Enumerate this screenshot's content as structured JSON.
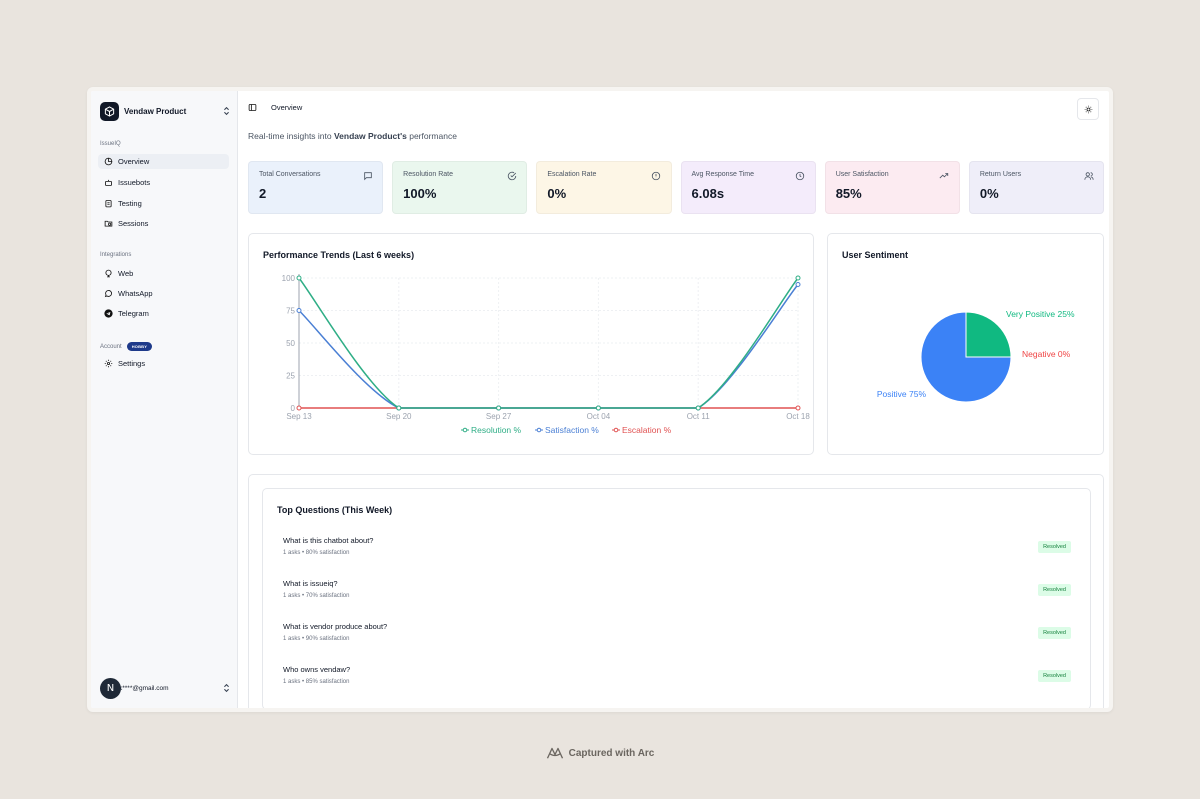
{
  "sidebar": {
    "brand": "Vendaw Product",
    "section_issueiq": "IssueIQ",
    "nav_overview": "Overview",
    "nav_issuebots": "Issuebots",
    "nav_testing": "Testing",
    "nav_sessions": "Sessions",
    "section_integrations": "Integrations",
    "nav_web": "Web",
    "nav_whatsapp": "WhatsApp",
    "nav_telegram": "Telegram",
    "section_account": "Account",
    "account_badge": "HOBBY",
    "nav_settings": "Settings",
    "avatar_letter": "N",
    "user_email": "k****@gmail.com"
  },
  "header": {
    "breadcrumb": "Overview",
    "subtitle_prefix": "Real-time insights into ",
    "subtitle_brand": "Vendaw Product's",
    "subtitle_suffix": " performance"
  },
  "stats": [
    {
      "label": "Total Conversations",
      "value": "2",
      "icon": "message-icon",
      "bg": "#eaf1fb"
    },
    {
      "label": "Resolution Rate",
      "value": "100%",
      "icon": "check-circle-icon",
      "bg": "#eaf7ee"
    },
    {
      "label": "Escalation Rate",
      "value": "0%",
      "icon": "alert-circle-icon",
      "bg": "#fdf6e6"
    },
    {
      "label": "Avg Response Time",
      "value": "6.08s",
      "icon": "clock-icon",
      "bg": "#f4ecfb"
    },
    {
      "label": "User Satisfaction",
      "value": "85%",
      "icon": "trending-up-icon",
      "bg": "#fcebf1"
    },
    {
      "label": "Return Users",
      "value": "0%",
      "icon": "users-icon",
      "bg": "#efeef9"
    }
  ],
  "chart_data": [
    {
      "type": "line",
      "title": "Performance Trends (Last 6 weeks)",
      "x": [
        "Sep 13",
        "Sep 20",
        "Sep 27",
        "Oct 04",
        "Oct 11",
        "Oct 18"
      ],
      "yticks": [
        0,
        25,
        50,
        75,
        100
      ],
      "ylim": [
        0,
        100
      ],
      "grid": true,
      "legend": "bottom",
      "series": [
        {
          "name": "Resolution %",
          "values": [
            100,
            0,
            0,
            0,
            0,
            100
          ],
          "color": "#2fae86"
        },
        {
          "name": "Satisfaction %",
          "values": [
            75,
            0,
            0,
            0,
            0,
            95
          ],
          "color": "#4a7fd4"
        },
        {
          "name": "Escalation %",
          "values": [
            0,
            0,
            0,
            0,
            0,
            0
          ],
          "color": "#e05252"
        }
      ]
    },
    {
      "type": "pie",
      "title": "User Sentiment",
      "slices": [
        {
          "label": "Very Positive 25%",
          "value": 25,
          "color": "#10b981"
        },
        {
          "label": "Positive 75%",
          "value": 75,
          "color": "#3b82f6"
        },
        {
          "label": "Negative 0%",
          "value": 0,
          "color": "#ef4444"
        }
      ]
    }
  ],
  "questions": {
    "title": "Top Questions (This Week)",
    "items": [
      {
        "text": "What is this chatbot about?",
        "meta": "1 asks • 80% satisfaction",
        "status": "Resolved"
      },
      {
        "text": "What is issueiq?",
        "meta": "1 asks • 70% satisfaction",
        "status": "Resolved"
      },
      {
        "text": "What is vendor produce about?",
        "meta": "1 asks • 90% satisfaction",
        "status": "Resolved"
      },
      {
        "text": "Who owns vendaw?",
        "meta": "1 asks • 85% satisfaction",
        "status": "Resolved"
      }
    ]
  },
  "footer": {
    "text": "Captured with Arc"
  }
}
